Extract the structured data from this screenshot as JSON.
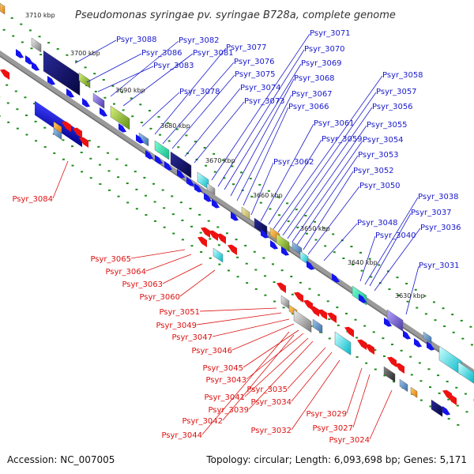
{
  "title": "Pseudomonas syringae pv. syringae B728a, complete genome",
  "accession": "Accession: NC_007005",
  "summary": "Topology: circular; Length: 6,093,698 bp; Genes: 5,171",
  "colors": {
    "forward_label": "#1a1acc",
    "reverse_label": "#dd1111",
    "forward_gene": "#1414ee",
    "reverse_gene": "#ee1111",
    "backbone": "#9a9a9a",
    "dots": "#1c8c1c"
  },
  "scale_ticks": [
    "3710 kbp",
    "3700 kbp",
    "3690 kbp",
    "3680 kbp",
    "3670 kbp",
    "3660 kbp",
    "3650 kbp",
    "3640 kbp",
    "3630 kbp"
  ],
  "forward_genes": [
    "Psyr_3088",
    "Psyr_3086",
    "Psyr_3083",
    "Psyr_3082",
    "Psyr_3081",
    "Psyr_3078",
    "Psyr_3077",
    "Psyr_3076",
    "Psyr_3075",
    "Psyr_3074",
    "Psyr_3073",
    "Psyr_3071",
    "Psyr_3070",
    "Psyr_3069",
    "Psyr_3068",
    "Psyr_3067",
    "Psyr_3066",
    "Psyr_3062",
    "Psyr_3061",
    "Psyr_3059",
    "Psyr_3058",
    "Psyr_3057",
    "Psyr_3056",
    "Psyr_3055",
    "Psyr_3054",
    "Psyr_3053",
    "Psyr_3052",
    "Psyr_3050",
    "Psyr_3048",
    "Psyr_3040",
    "Psyr_3038",
    "Psyr_3037",
    "Psyr_3036",
    "Psyr_3031"
  ],
  "reverse_genes": [
    "Psyr_3084",
    "Psyr_3065",
    "Psyr_3064",
    "Psyr_3063",
    "Psyr_3060",
    "Psyr_3051",
    "Psyr_3049",
    "Psyr_3047",
    "Psyr_3046",
    "Psyr_3045",
    "Psyr_3043",
    "Psyr_3041",
    "Psyr_3039",
    "Psyr_3042",
    "Psyr_3044",
    "Psyr_3035",
    "Psyr_3034",
    "Psyr_3032",
    "Psyr_3029",
    "Psyr_3027",
    "Psyr_3024"
  ]
}
